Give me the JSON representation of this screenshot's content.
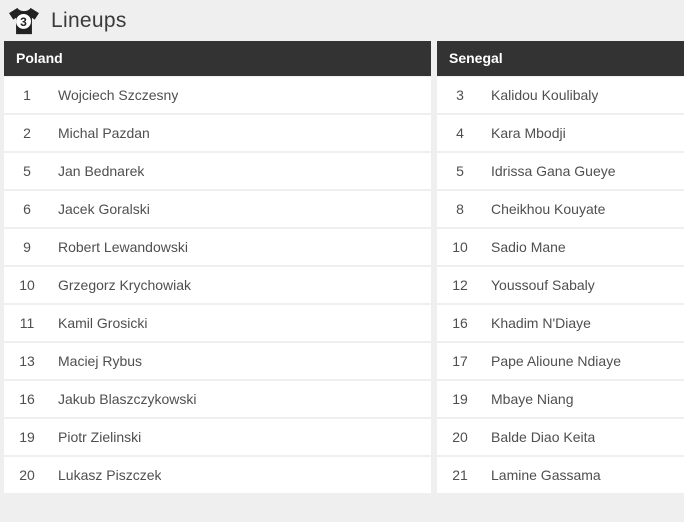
{
  "header": {
    "title": "Lineups",
    "jersey_badge_number": "3"
  },
  "teams": [
    {
      "name": "Poland",
      "players": [
        {
          "number": "1",
          "name": "Wojciech Szczesny"
        },
        {
          "number": "2",
          "name": "Michal Pazdan"
        },
        {
          "number": "5",
          "name": "Jan Bednarek"
        },
        {
          "number": "6",
          "name": "Jacek Goralski"
        },
        {
          "number": "9",
          "name": "Robert Lewandowski"
        },
        {
          "number": "10",
          "name": "Grzegorz Krychowiak"
        },
        {
          "number": "11",
          "name": "Kamil Grosicki"
        },
        {
          "number": "13",
          "name": "Maciej Rybus"
        },
        {
          "number": "16",
          "name": "Jakub Blaszczykowski"
        },
        {
          "number": "19",
          "name": "Piotr Zielinski"
        },
        {
          "number": "20",
          "name": "Lukasz Piszczek"
        }
      ]
    },
    {
      "name": "Senegal",
      "players": [
        {
          "number": "3",
          "name": "Kalidou Koulibaly"
        },
        {
          "number": "4",
          "name": "Kara Mbodji"
        },
        {
          "number": "5",
          "name": "Idrissa Gana Gueye"
        },
        {
          "number": "8",
          "name": "Cheikhou Kouyate"
        },
        {
          "number": "10",
          "name": "Sadio Mane"
        },
        {
          "number": "12",
          "name": "Youssouf Sabaly"
        },
        {
          "number": "16",
          "name": "Khadim N'Diaye"
        },
        {
          "number": "17",
          "name": "Pape Alioune Ndiaye"
        },
        {
          "number": "19",
          "name": "Mbaye Niang"
        },
        {
          "number": "20",
          "name": "Balde Diao Keita"
        },
        {
          "number": "21",
          "name": "Lamine Gassama"
        }
      ]
    }
  ],
  "colors": {
    "page_background": "#efefef",
    "table_header_background": "#333333",
    "table_header_text": "#ffffff",
    "row_background": "#ffffff",
    "row_text": "#4f4f4f",
    "title_text": "#3a3a3a",
    "icon_color": "#222222"
  }
}
